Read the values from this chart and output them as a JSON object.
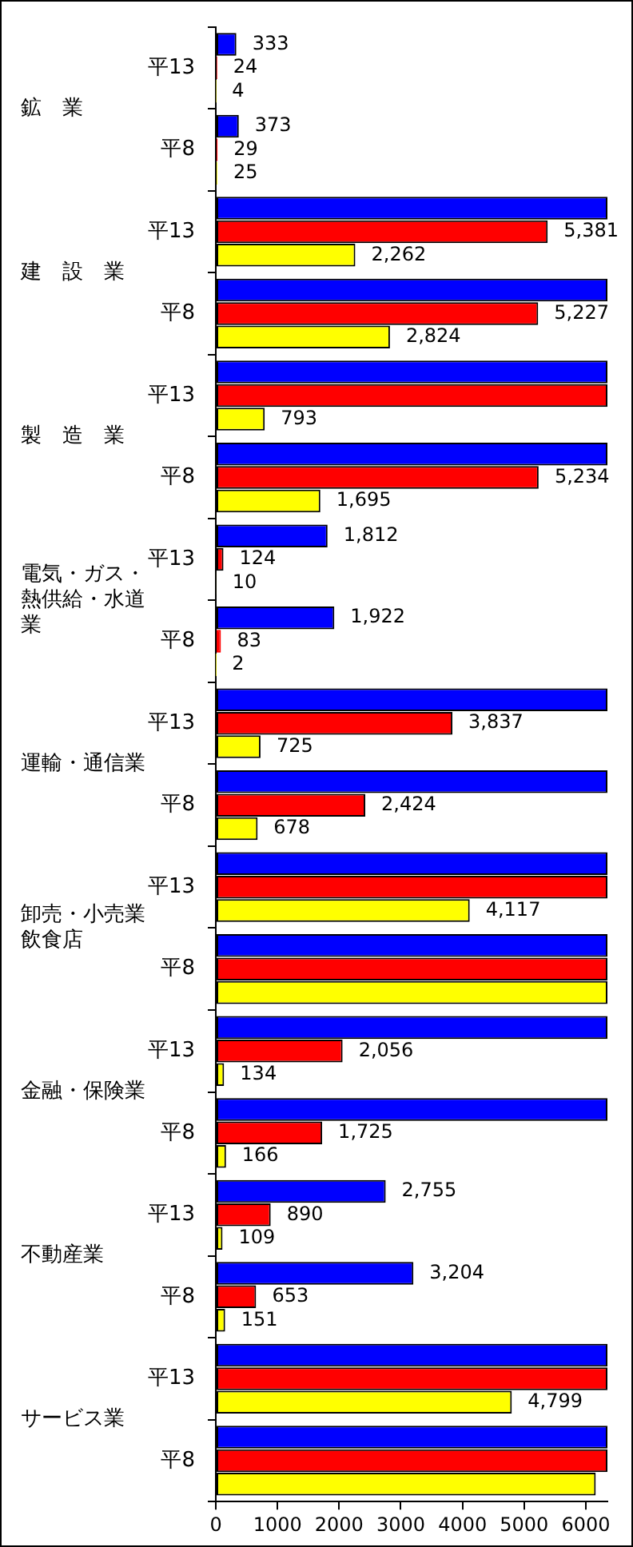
{
  "chart_data": {
    "type": "bar",
    "orientation": "horizontal",
    "categories": [
      "平13",
      "平8",
      "平13",
      "平8",
      "平13",
      "平8",
      "平13",
      "平8",
      "平13",
      "平8",
      "平13",
      "平8",
      "平13",
      "平8",
      "平13",
      "平8",
      "平13",
      "平8"
    ],
    "annotations": [
      "鉱　業",
      "建　設　業",
      "製　造　業",
      "電気・ガス・熱供給・水道業",
      "運輸・通信業",
      "卸売・小売業飲食店",
      "金融・保険業",
      "不動産業",
      "サービス業"
    ],
    "series": [
      {
        "color": "#0000ff",
        "values": [
          333,
          373,
          6350,
          6350,
          6350,
          6350,
          1812,
          1922,
          6350,
          6350,
          6350,
          6350,
          6350,
          6350,
          2755,
          3204,
          6350,
          6350
        ],
        "value_labels": [
          "333",
          "373",
          null,
          null,
          null,
          null,
          "1,812",
          "1,922",
          null,
          null,
          null,
          null,
          null,
          null,
          "2,755",
          "3,204",
          null,
          null
        ]
      },
      {
        "color": "#ff0000",
        "values": [
          24,
          29,
          5381,
          5227,
          6350,
          5234,
          124,
          83,
          3837,
          2424,
          6350,
          6350,
          2056,
          1725,
          890,
          653,
          6350,
          6350
        ],
        "value_labels": [
          "24",
          "29",
          "5,381",
          "5,227",
          null,
          "5,234",
          "124",
          "83",
          "3,837",
          "2,424",
          null,
          null,
          "2,056",
          "1,725",
          "890",
          "653",
          null,
          null
        ]
      },
      {
        "color": "#ffff00",
        "values": [
          4,
          25,
          2262,
          2824,
          793,
          1695,
          10,
          2,
          725,
          678,
          4117,
          6350,
          134,
          166,
          109,
          151,
          4799,
          6160
        ],
        "value_labels": [
          "4",
          "25",
          "2,262",
          "2,824",
          "793",
          "1,695",
          "10",
          "2",
          "725",
          "678",
          "4,117",
          null,
          "134",
          "166",
          "109",
          "151",
          "4,799",
          null
        ]
      }
    ],
    "xlim": [
      0,
      6350
    ],
    "xticks": [
      0,
      1000,
      2000,
      3000,
      4000,
      5000,
      6000
    ]
  }
}
